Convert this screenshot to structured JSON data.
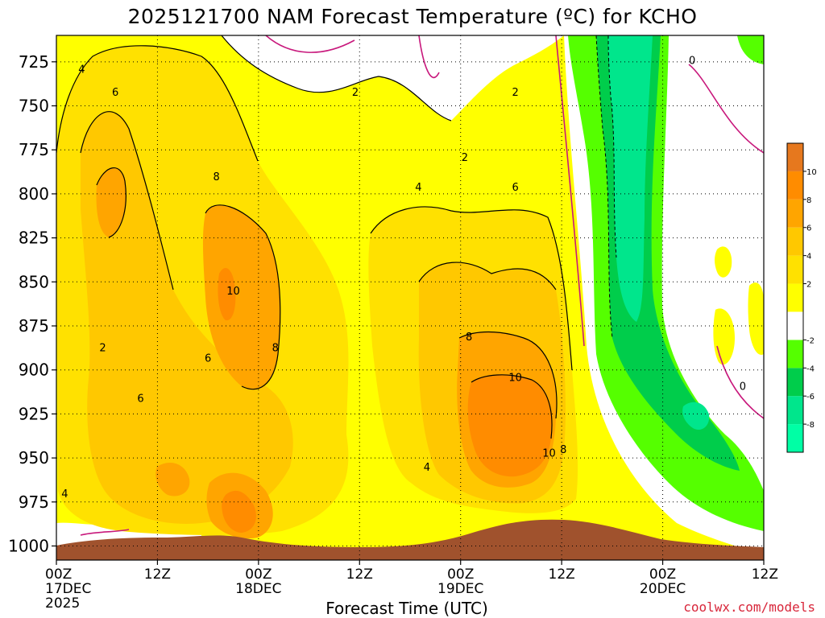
{
  "chart_data": {
    "type": "heatmap",
    "title": "2025121700 NAM Forecast Temperature (ºC) for KCHO",
    "xlabel": "Forecast Time (UTC)",
    "ylabel": "",
    "yaxis": {
      "reversed": true,
      "range": [
        710,
        1008
      ]
    },
    "y_ticks": [
      "725",
      "750",
      "775",
      "800",
      "825",
      "850",
      "875",
      "900",
      "925",
      "950",
      "975",
      "1000"
    ],
    "y_tick_values": [
      725,
      750,
      775,
      800,
      825,
      850,
      875,
      900,
      925,
      950,
      975,
      1000
    ],
    "x_range_hours": [
      0,
      84
    ],
    "x_ticks": [
      {
        "hour": 0,
        "labels": [
          "00Z",
          "17DEC",
          "2025"
        ]
      },
      {
        "hour": 12,
        "labels": [
          "12Z"
        ]
      },
      {
        "hour": 24,
        "labels": [
          "00Z",
          "18DEC"
        ]
      },
      {
        "hour": 36,
        "labels": [
          "12Z"
        ]
      },
      {
        "hour": 48,
        "labels": [
          "00Z",
          "19DEC"
        ]
      },
      {
        "hour": 60,
        "labels": [
          "12Z"
        ]
      },
      {
        "hour": 72,
        "labels": [
          "00Z",
          "20DEC"
        ]
      },
      {
        "hour": 84,
        "labels": [
          "12Z"
        ]
      }
    ],
    "grid": true,
    "colorbar": {
      "position": "right",
      "levels": [
        -10,
        -8,
        -6,
        -4,
        -2,
        0,
        2,
        4,
        6,
        8,
        10,
        12
      ],
      "tick_labels": [
        "-8",
        "-6",
        "-4",
        "-2",
        "2",
        "4",
        "6",
        "8",
        "10"
      ],
      "colors": [
        "#00ffa5",
        "#00e68c",
        "#00cd4b",
        "#55ff00",
        "#ffffff",
        "#ffff00",
        "#ffe100",
        "#ffc800",
        "#ffa500",
        "#ff8c00",
        "#e6781e"
      ]
    },
    "contour_labels": [
      {
        "text": "4",
        "hour": 3.0,
        "p": 729
      },
      {
        "text": "2",
        "hour": 35.5,
        "p": 742
      },
      {
        "text": "2",
        "hour": 54.5,
        "p": 742
      },
      {
        "text": "0",
        "hour": 75.5,
        "p": 724
      },
      {
        "text": "6",
        "hour": 7.0,
        "p": 742
      },
      {
        "text": "2",
        "hour": 48.5,
        "p": 779
      },
      {
        "text": "8",
        "hour": 19.0,
        "p": 790
      },
      {
        "text": "4",
        "hour": 43.0,
        "p": 796
      },
      {
        "text": "6",
        "hour": 54.5,
        "p": 796
      },
      {
        "text": "10",
        "hour": 21.0,
        "p": 855
      },
      {
        "text": "2",
        "hour": 5.5,
        "p": 887
      },
      {
        "text": "8",
        "hour": 26.0,
        "p": 887
      },
      {
        "text": "8",
        "hour": 49.0,
        "p": 881
      },
      {
        "text": "6",
        "hour": 18.0,
        "p": 893
      },
      {
        "text": "10",
        "hour": 54.5,
        "p": 904
      },
      {
        "text": "6",
        "hour": 10.0,
        "p": 916
      },
      {
        "text": "0",
        "hour": 81.5,
        "p": 909
      },
      {
        "text": "10",
        "hour": 58.5,
        "p": 947
      },
      {
        "text": "8",
        "hour": 60.2,
        "p": 945
      },
      {
        "text": "4",
        "hour": 44.0,
        "p": 955
      },
      {
        "text": "4",
        "hour": 1.0,
        "p": 970
      }
    ],
    "terrain_color": "#a0522d"
  },
  "credit": "coolwx.com/models"
}
